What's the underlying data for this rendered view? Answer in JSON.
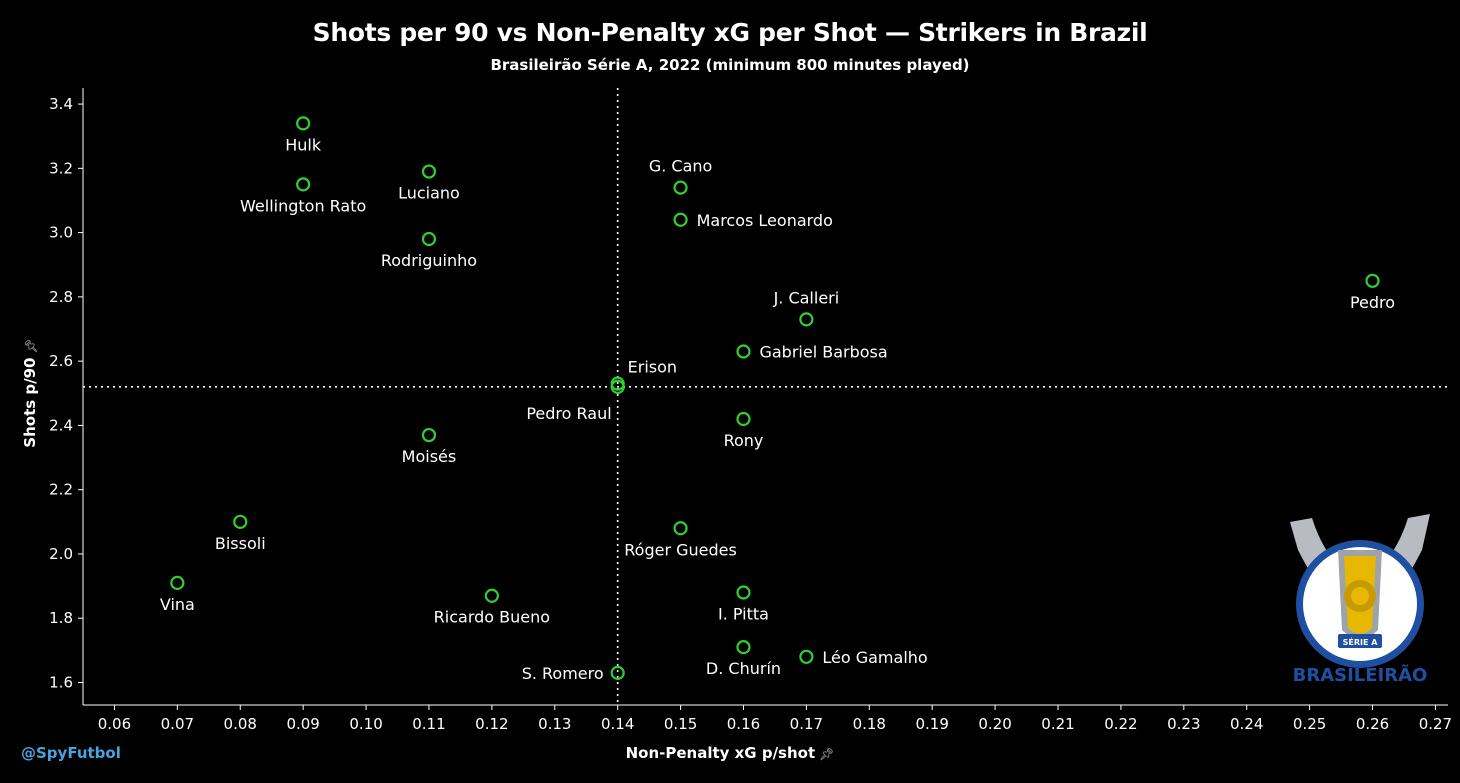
{
  "chart_data": {
    "type": "scatter",
    "title": "Shots per 90 vs Non-Penalty xG per Shot — Strikers in Brazil",
    "subtitle": "Brasileirão Série A, 2022 (minimum 800  minutes played)",
    "xlabel": "Non-Penalty xG p/shot",
    "ylabel": "Shots p/90",
    "xlim": [
      0.055,
      0.272
    ],
    "ylim": [
      1.53,
      3.45
    ],
    "xticks": [
      "0.06",
      "0.07",
      "0.08",
      "0.09",
      "0.10",
      "0.11",
      "0.12",
      "0.13",
      "0.14",
      "0.15",
      "0.16",
      "0.17",
      "0.18",
      "0.19",
      "0.20",
      "0.21",
      "0.22",
      "0.23",
      "0.24",
      "0.25",
      "0.26",
      "0.27"
    ],
    "yticks": [
      "1.6",
      "1.8",
      "2.0",
      "2.2",
      "2.4",
      "2.6",
      "2.8",
      "3.0",
      "3.2",
      "3.4"
    ],
    "reference_lines": {
      "x": 0.14,
      "y": 2.52,
      "style": "dotted"
    },
    "marker_color": "#33cc33",
    "grid": false,
    "points": [
      {
        "name": "Hulk",
        "x": 0.09,
        "y": 3.34,
        "label_pos": "below"
      },
      {
        "name": "Wellington Rato",
        "x": 0.09,
        "y": 3.15,
        "label_pos": "below"
      },
      {
        "name": "Luciano",
        "x": 0.11,
        "y": 3.19,
        "label_pos": "below"
      },
      {
        "name": "Rodriguinho",
        "x": 0.11,
        "y": 2.98,
        "label_pos": "below"
      },
      {
        "name": "G. Cano",
        "x": 0.15,
        "y": 3.14,
        "label_pos": "above"
      },
      {
        "name": "Marcos Leonardo",
        "x": 0.15,
        "y": 3.04,
        "label_pos": "right"
      },
      {
        "name": "Pedro",
        "x": 0.26,
        "y": 2.85,
        "label_pos": "below"
      },
      {
        "name": "J. Calleri",
        "x": 0.17,
        "y": 2.73,
        "label_pos": "above"
      },
      {
        "name": "Gabriel Barbosa",
        "x": 0.16,
        "y": 2.63,
        "label_pos": "right"
      },
      {
        "name": "Erison",
        "x": 0.14,
        "y": 2.53,
        "label_pos": "above-right"
      },
      {
        "name": "Pedro Raul",
        "x": 0.14,
        "y": 2.52,
        "label_pos": "below-left"
      },
      {
        "name": "Rony",
        "x": 0.16,
        "y": 2.42,
        "label_pos": "below"
      },
      {
        "name": "Moisés",
        "x": 0.11,
        "y": 2.37,
        "label_pos": "below"
      },
      {
        "name": "Bissoli",
        "x": 0.08,
        "y": 2.1,
        "label_pos": "below"
      },
      {
        "name": "Róger Guedes",
        "x": 0.15,
        "y": 2.08,
        "label_pos": "below"
      },
      {
        "name": "Vina",
        "x": 0.07,
        "y": 1.91,
        "label_pos": "below"
      },
      {
        "name": "Ricardo Bueno",
        "x": 0.12,
        "y": 1.87,
        "label_pos": "below"
      },
      {
        "name": "I. Pitta",
        "x": 0.16,
        "y": 1.88,
        "label_pos": "below"
      },
      {
        "name": "D. Churín",
        "x": 0.16,
        "y": 1.71,
        "label_pos": "below"
      },
      {
        "name": "Léo Gamalho",
        "x": 0.17,
        "y": 1.68,
        "label_pos": "right"
      },
      {
        "name": "S. Romero",
        "x": 0.14,
        "y": 1.63,
        "label_pos": "left"
      }
    ]
  },
  "credit": "@SpyFutbol",
  "logo": {
    "text": "BRASILEIRÃO",
    "band_text": "SÉRIE A",
    "colors": {
      "blue": "#1f4fa0",
      "gold": "#e6b800",
      "silver": "#b8bcc2"
    }
  }
}
